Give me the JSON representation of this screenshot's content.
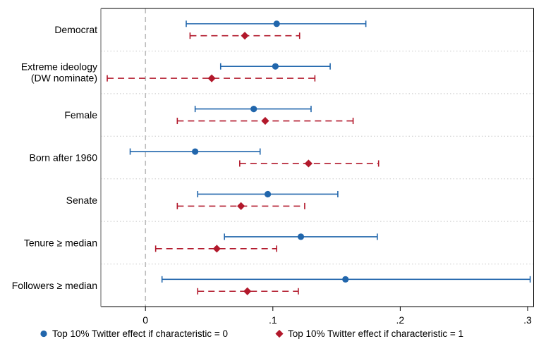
{
  "chart_data": {
    "type": "scatter",
    "subtype": "coefficient-plot-horizontal-error-bars",
    "title": "",
    "xlabel": "",
    "ylabel": "",
    "xlim": [
      -0.035,
      0.305
    ],
    "x_ticks": [
      0,
      0.1,
      0.2,
      0.3
    ],
    "x_tick_labels": [
      "0",
      ".1",
      ".2",
      ".3"
    ],
    "reference_line_x": 0,
    "grid": "horizontal-dotted",
    "legend_position": "bottom",
    "categories": [
      [
        "Democrat"
      ],
      [
        "Extreme ideology",
        "(DW nominate)"
      ],
      [
        "Female"
      ],
      [
        "Born after 1960"
      ],
      [
        "Senate"
      ],
      [
        "Tenure ≥ median"
      ],
      [
        "Followers ≥ median"
      ]
    ],
    "series": [
      {
        "name": "Top 10% Twitter effect if characteristic = 0",
        "marker": "circle",
        "line_style": "solid",
        "color": "#2166ac",
        "estimates": [
          0.103,
          0.102,
          0.085,
          0.039,
          0.096,
          0.122,
          0.157
        ],
        "ci_low": [
          0.032,
          0.059,
          0.039,
          -0.012,
          0.041,
          0.062,
          0.013
        ],
        "ci_high": [
          0.173,
          0.145,
          0.13,
          0.09,
          0.151,
          0.182,
          0.302
        ]
      },
      {
        "name": "Top 10% Twitter effect if characteristic = 1",
        "marker": "diamond",
        "line_style": "dashed",
        "color": "#b2182b",
        "estimates": [
          0.078,
          0.052,
          0.094,
          0.128,
          0.075,
          0.056,
          0.08
        ],
        "ci_low": [
          0.035,
          -0.03,
          0.025,
          0.074,
          0.025,
          0.008,
          0.041
        ],
        "ci_high": [
          0.121,
          0.133,
          0.163,
          0.183,
          0.125,
          0.103,
          0.12
        ]
      }
    ]
  }
}
